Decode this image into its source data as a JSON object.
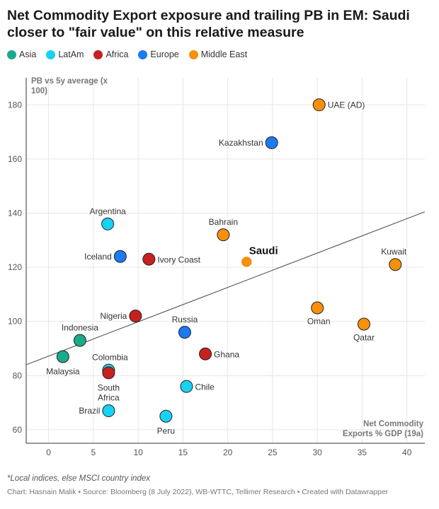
{
  "title": "Net Commodity Export exposure and trailing PB in EM: Saudi closer to \"fair value\" on this relative measure",
  "legend": [
    {
      "name": "Asia",
      "color": "#1aaa8c"
    },
    {
      "name": "LatAm",
      "color": "#17d2f5"
    },
    {
      "name": "Africa",
      "color": "#c7201f"
    },
    {
      "name": "Europe",
      "color": "#1b7bf2"
    },
    {
      "name": "Middle East",
      "color": "#f7900b"
    }
  ],
  "chart_data": {
    "type": "scatter",
    "title": "Net Commodity Export exposure and trailing PB in EM: Saudi closer to \"fair value\" on this relative measure",
    "xlabel_lines": [
      "Net Commodity",
      "Exports % GDP (19a)"
    ],
    "ylabel_lines": [
      "PB vs 5y average (x",
      "100)"
    ],
    "xlim": [
      -2.5,
      42
    ],
    "ylim": [
      55,
      190
    ],
    "xticks": [
      0,
      5,
      10,
      15,
      20,
      25,
      30,
      35,
      40
    ],
    "yticks": [
      60,
      80,
      100,
      120,
      140,
      160,
      180
    ],
    "trendline": {
      "x": [
        -2.5,
        42
      ],
      "y": [
        84,
        140.5
      ]
    },
    "points": [
      {
        "label": "UAE (AD)",
        "x": 30.2,
        "y": 180,
        "group": "Middle East"
      },
      {
        "label": "Kazakhstan",
        "x": 24.9,
        "y": 166,
        "group": "Europe"
      },
      {
        "label": "Argentina",
        "x": 6.6,
        "y": 136,
        "group": "LatAm"
      },
      {
        "label": "Bahrain",
        "x": 19.5,
        "y": 132,
        "group": "Middle East"
      },
      {
        "label": "Iceland",
        "x": 8.0,
        "y": 124,
        "group": "Europe"
      },
      {
        "label": "Ivory Coast",
        "x": 11.2,
        "y": 123,
        "group": "Africa"
      },
      {
        "label": "Saudi",
        "x": 22.1,
        "y": 122,
        "group": "Middle East",
        "highlight": true
      },
      {
        "label": "Kuwait",
        "x": 38.7,
        "y": 121,
        "group": "Middle East"
      },
      {
        "label": "Oman",
        "x": 30.0,
        "y": 105,
        "group": "Middle East"
      },
      {
        "label": "Nigeria",
        "x": 9.7,
        "y": 102,
        "group": "Africa"
      },
      {
        "label": "Qatar",
        "x": 35.2,
        "y": 99,
        "group": "Middle East"
      },
      {
        "label": "Russia",
        "x": 15.2,
        "y": 96,
        "group": "Europe"
      },
      {
        "label": "Indonesia",
        "x": 3.5,
        "y": 93,
        "group": "Asia"
      },
      {
        "label": "Ghana",
        "x": 17.5,
        "y": 88,
        "group": "Africa"
      },
      {
        "label": "Malaysia",
        "x": 1.6,
        "y": 87,
        "group": "Asia"
      },
      {
        "label": "Colombia",
        "x": 6.7,
        "y": 82,
        "group": "LatAm"
      },
      {
        "label": "South Africa",
        "x": 6.7,
        "y": 81,
        "group": "Africa"
      },
      {
        "label": "Chile",
        "x": 15.4,
        "y": 76,
        "group": "LatAm"
      },
      {
        "label": "Brazil",
        "x": 6.7,
        "y": 67,
        "group": "LatAm"
      },
      {
        "label": "Peru",
        "x": 13.1,
        "y": 65,
        "group": "LatAm"
      }
    ]
  },
  "footnote": "*Local indices, else MSCI country index",
  "credit": "Chart: Hasnain Malik • Source: Bloomberg (8 July 2022), WB-WTTC, Tellimer Research • Created with Datawrapper"
}
